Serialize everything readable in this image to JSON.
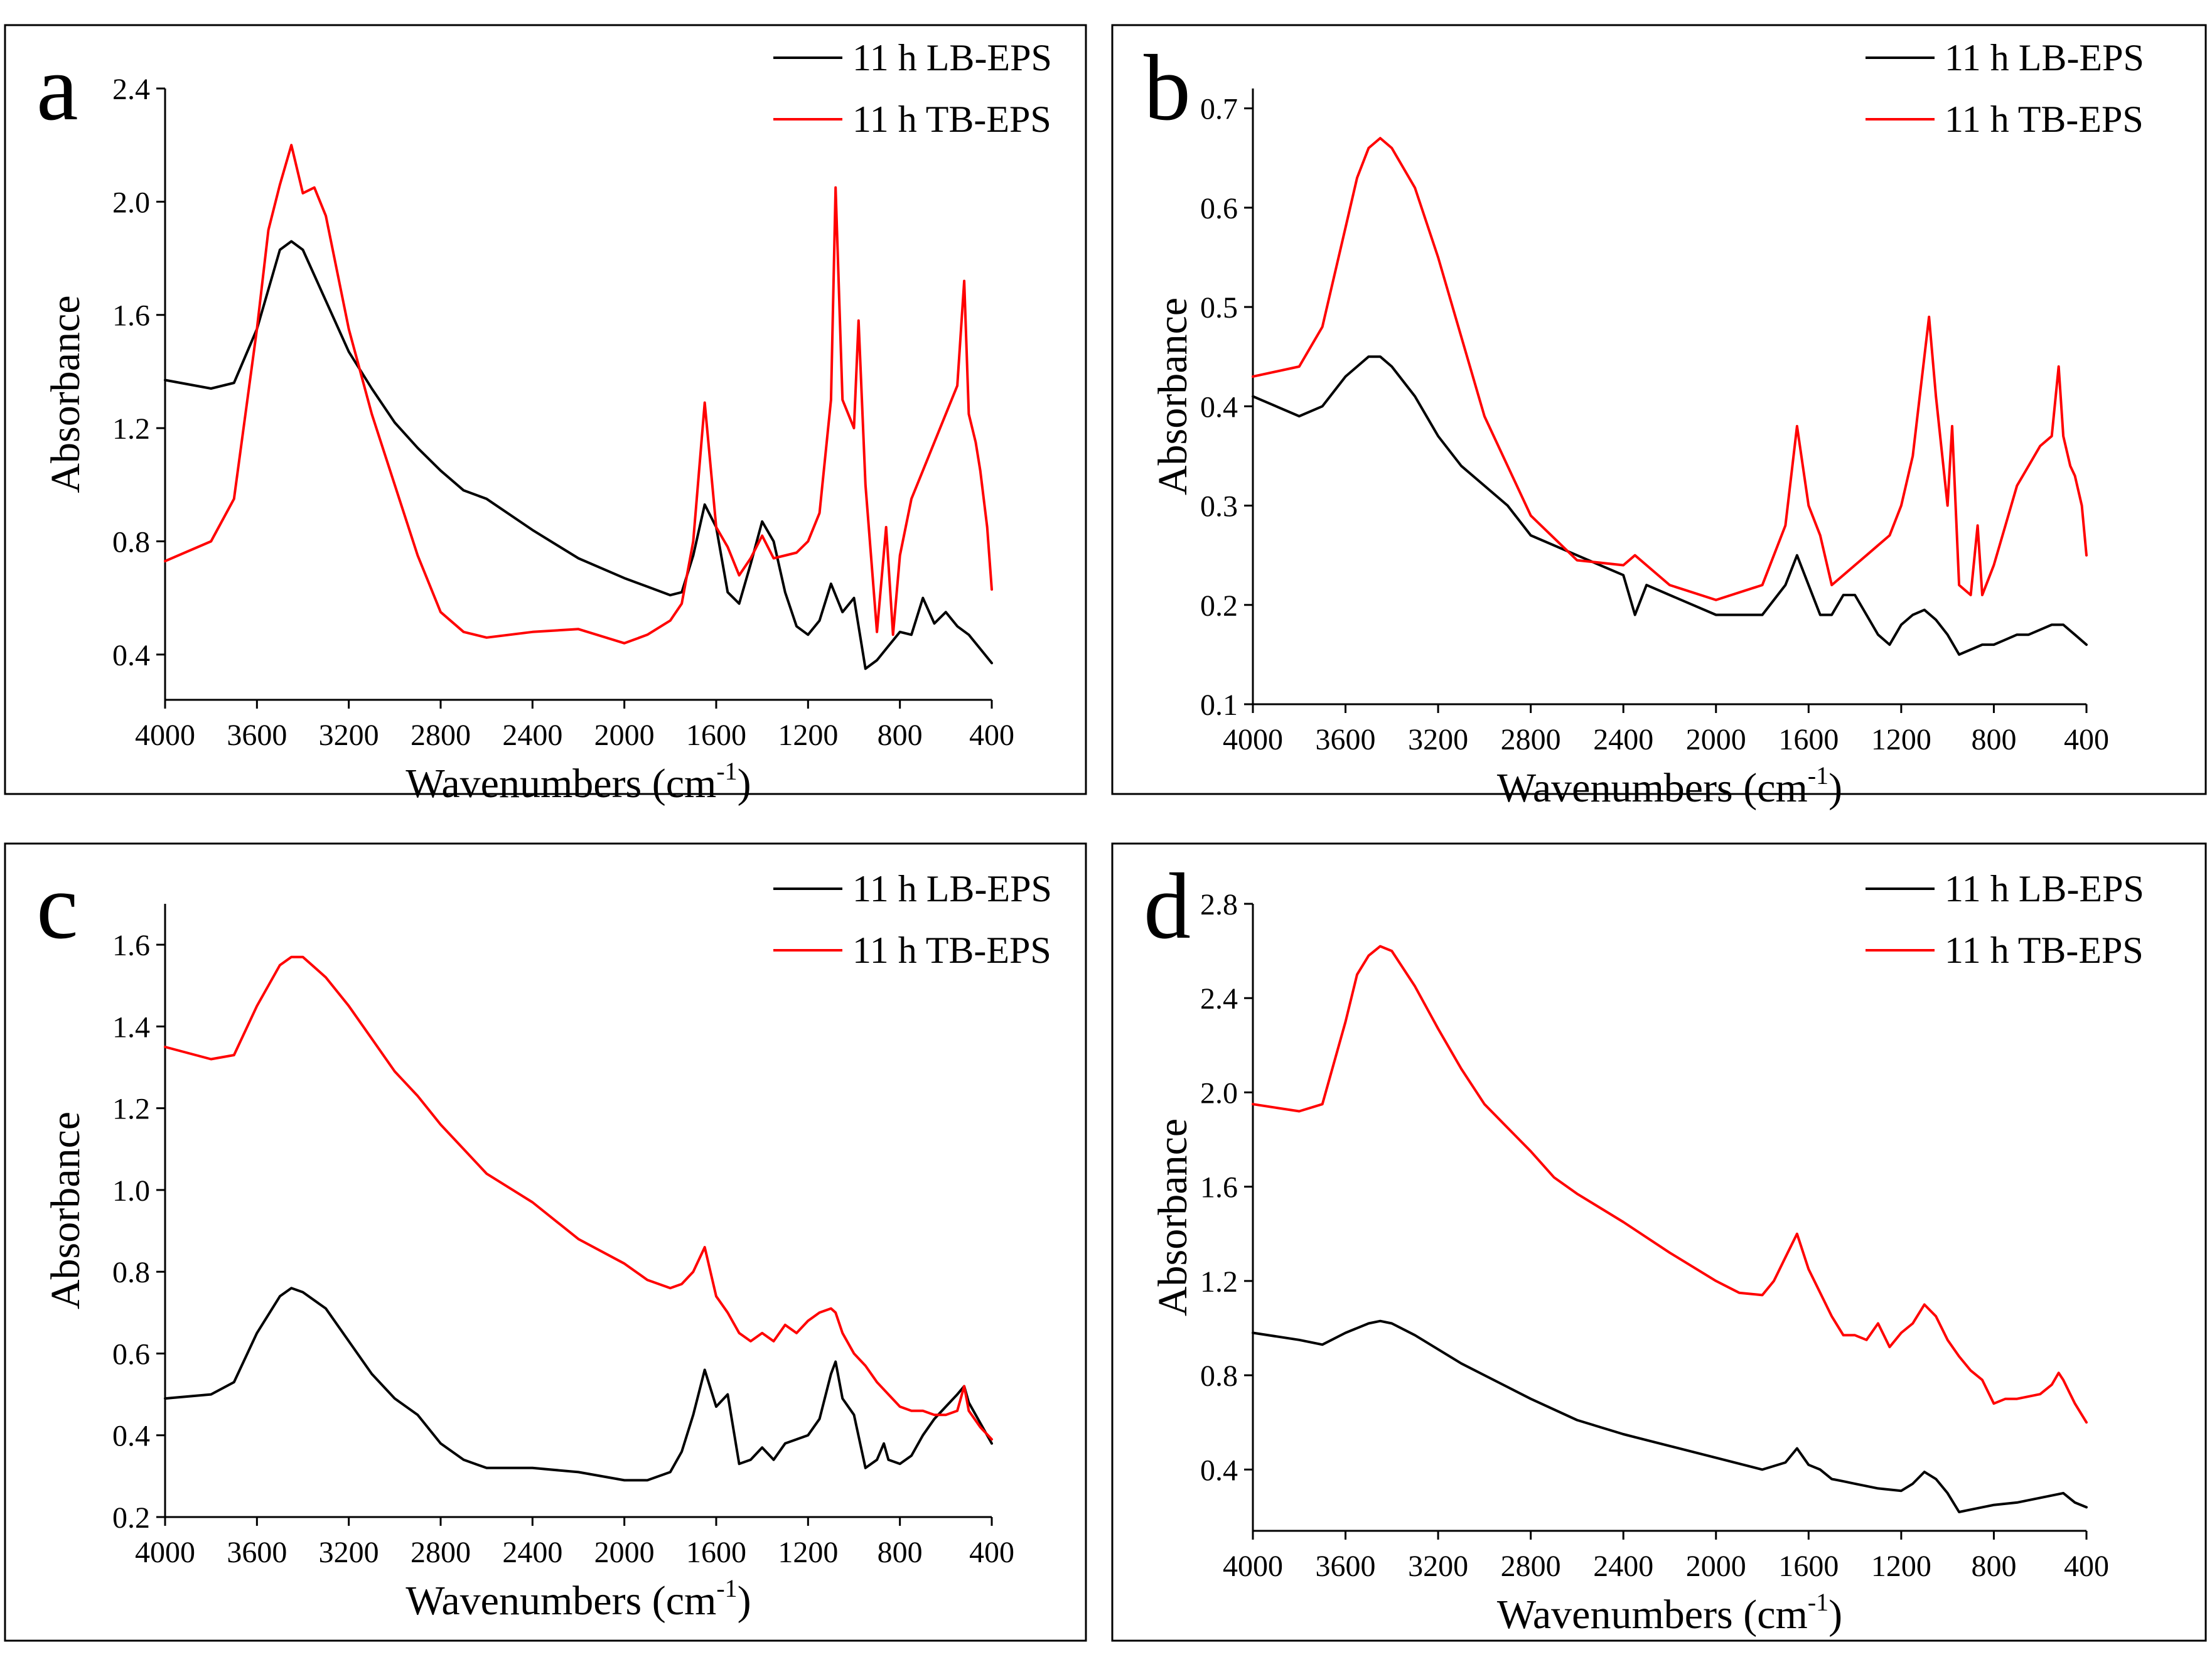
{
  "colors": {
    "lb": "#000000",
    "tb": "#ff0000"
  },
  "chart_data": [
    {
      "type": "line",
      "panel_label": "a",
      "xlabel": "Wavenumbers (cm",
      "xlabel_sup": "-1",
      "xlabel_close": ")",
      "ylabel": "Absorbance",
      "xlim": [
        4000,
        400
      ],
      "ylim": [
        0.24,
        2.4
      ],
      "xticks": [
        4000,
        3600,
        3200,
        2800,
        2400,
        2000,
        1600,
        1200,
        800,
        400
      ],
      "yticks": [
        "0.4",
        "0.8",
        "1.2",
        "1.6",
        "2.0",
        "2.4"
      ],
      "series": [
        {
          "name": "11 h LB-EPS",
          "color": "#000000",
          "x": [
            4000,
            3800,
            3700,
            3600,
            3500,
            3450,
            3400,
            3300,
            3200,
            3100,
            3000,
            2900,
            2800,
            2700,
            2600,
            2400,
            2200,
            2000,
            1900,
            1800,
            1750,
            1700,
            1650,
            1600,
            1550,
            1500,
            1450,
            1400,
            1350,
            1300,
            1250,
            1200,
            1150,
            1100,
            1050,
            1000,
            950,
            900,
            850,
            800,
            750,
            700,
            650,
            600,
            550,
            500,
            450,
            400
          ],
          "values": [
            1.37,
            1.34,
            1.36,
            1.55,
            1.83,
            1.86,
            1.83,
            1.65,
            1.47,
            1.34,
            1.22,
            1.13,
            1.05,
            0.98,
            0.95,
            0.84,
            0.74,
            0.67,
            0.64,
            0.61,
            0.62,
            0.75,
            0.93,
            0.85,
            0.62,
            0.58,
            0.72,
            0.87,
            0.8,
            0.62,
            0.5,
            0.47,
            0.52,
            0.65,
            0.55,
            0.6,
            0.35,
            0.38,
            0.43,
            0.48,
            0.47,
            0.6,
            0.51,
            0.55,
            0.5,
            0.47,
            0.42,
            0.37
          ]
        },
        {
          "name": "11 h TB-EPS",
          "color": "#ff0000",
          "x": [
            4000,
            3800,
            3700,
            3600,
            3550,
            3500,
            3450,
            3400,
            3350,
            3300,
            3200,
            3100,
            3000,
            2900,
            2800,
            2700,
            2600,
            2400,
            2200,
            2000,
            1900,
            1800,
            1750,
            1700,
            1650,
            1600,
            1550,
            1500,
            1450,
            1400,
            1350,
            1300,
            1250,
            1200,
            1150,
            1100,
            1080,
            1050,
            1000,
            980,
            950,
            900,
            860,
            830,
            800,
            750,
            700,
            650,
            600,
            550,
            520,
            500,
            470,
            450,
            420,
            400
          ],
          "values": [
            0.73,
            0.8,
            0.95,
            1.55,
            1.9,
            2.06,
            2.2,
            2.03,
            2.05,
            1.95,
            1.55,
            1.25,
            1.0,
            0.75,
            0.55,
            0.48,
            0.46,
            0.48,
            0.49,
            0.44,
            0.47,
            0.52,
            0.58,
            0.8,
            1.29,
            0.85,
            0.78,
            0.68,
            0.74,
            0.82,
            0.74,
            0.75,
            0.76,
            0.8,
            0.9,
            1.3,
            2.05,
            1.3,
            1.2,
            1.58,
            1.0,
            0.48,
            0.85,
            0.47,
            0.75,
            0.95,
            1.05,
            1.15,
            1.25,
            1.35,
            1.72,
            1.25,
            1.15,
            1.05,
            0.85,
            0.63
          ]
        }
      ]
    },
    {
      "type": "line",
      "panel_label": "b",
      "xlabel": "Wavenumbers (cm",
      "xlabel_sup": "-1",
      "xlabel_close": ")",
      "ylabel": "Absorbance",
      "xlim": [
        4000,
        400
      ],
      "ylim": [
        0.1,
        0.72
      ],
      "xticks": [
        4000,
        3600,
        3200,
        2800,
        2400,
        2000,
        1600,
        1200,
        800,
        400
      ],
      "yticks": [
        "0.1",
        "0.2",
        "0.3",
        "0.4",
        "0.5",
        "0.6",
        "0.7"
      ],
      "series": [
        {
          "name": "11 h LB-EPS",
          "color": "#000000",
          "x": [
            4000,
            3800,
            3700,
            3600,
            3500,
            3450,
            3400,
            3300,
            3200,
            3100,
            3000,
            2900,
            2800,
            2600,
            2400,
            2350,
            2300,
            2200,
            2000,
            1800,
            1700,
            1650,
            1600,
            1550,
            1500,
            1450,
            1400,
            1350,
            1300,
            1250,
            1200,
            1150,
            1100,
            1050,
            1000,
            950,
            900,
            850,
            800,
            750,
            700,
            650,
            600,
            550,
            500,
            450,
            400
          ],
          "values": [
            0.41,
            0.39,
            0.4,
            0.43,
            0.45,
            0.45,
            0.44,
            0.41,
            0.37,
            0.34,
            0.32,
            0.3,
            0.27,
            0.25,
            0.23,
            0.19,
            0.22,
            0.21,
            0.19,
            0.19,
            0.22,
            0.25,
            0.22,
            0.19,
            0.19,
            0.21,
            0.21,
            0.19,
            0.17,
            0.16,
            0.18,
            0.19,
            0.195,
            0.185,
            0.17,
            0.15,
            0.155,
            0.16,
            0.16,
            0.165,
            0.17,
            0.17,
            0.175,
            0.18,
            0.18,
            0.17,
            0.16
          ]
        },
        {
          "name": "11 h TB-EPS",
          "color": "#ff0000",
          "x": [
            4000,
            3800,
            3700,
            3600,
            3550,
            3500,
            3450,
            3400,
            3350,
            3300,
            3200,
            3100,
            3000,
            2900,
            2800,
            2600,
            2400,
            2350,
            2300,
            2200,
            2000,
            1800,
            1700,
            1650,
            1600,
            1550,
            1500,
            1450,
            1400,
            1350,
            1300,
            1250,
            1200,
            1150,
            1100,
            1080,
            1050,
            1000,
            980,
            950,
            900,
            870,
            850,
            800,
            750,
            700,
            650,
            600,
            550,
            520,
            500,
            470,
            450,
            420,
            400
          ],
          "values": [
            0.43,
            0.44,
            0.48,
            0.58,
            0.63,
            0.66,
            0.67,
            0.66,
            0.64,
            0.62,
            0.55,
            0.47,
            0.39,
            0.34,
            0.29,
            0.245,
            0.24,
            0.25,
            0.24,
            0.22,
            0.205,
            0.22,
            0.28,
            0.38,
            0.3,
            0.27,
            0.22,
            0.23,
            0.24,
            0.25,
            0.26,
            0.27,
            0.3,
            0.35,
            0.45,
            0.49,
            0.41,
            0.3,
            0.38,
            0.22,
            0.21,
            0.28,
            0.21,
            0.24,
            0.28,
            0.32,
            0.34,
            0.36,
            0.37,
            0.44,
            0.37,
            0.34,
            0.33,
            0.3,
            0.25
          ]
        }
      ]
    },
    {
      "type": "line",
      "panel_label": "c",
      "xlabel": "Wavenumbers (cm",
      "xlabel_sup": "-1",
      "xlabel_close": ")",
      "ylabel": "Absorbance",
      "xlim": [
        4000,
        400
      ],
      "ylim": [
        0.2,
        1.7
      ],
      "xticks": [
        4000,
        3600,
        3200,
        2800,
        2400,
        2000,
        1600,
        1200,
        800,
        400
      ],
      "yticks": [
        "0.2",
        "0.4",
        "0.6",
        "0.8",
        "1.0",
        "1.2",
        "1.4",
        "1.6"
      ],
      "series": [
        {
          "name": "11 h LB-EPS",
          "color": "#000000",
          "x": [
            4000,
            3800,
            3700,
            3600,
            3500,
            3450,
            3400,
            3300,
            3200,
            3100,
            3000,
            2900,
            2800,
            2700,
            2600,
            2400,
            2200,
            2000,
            1900,
            1800,
            1750,
            1700,
            1650,
            1600,
            1550,
            1500,
            1450,
            1400,
            1350,
            1300,
            1250,
            1200,
            1150,
            1100,
            1080,
            1050,
            1000,
            950,
            900,
            870,
            850,
            800,
            750,
            700,
            650,
            600,
            550,
            520,
            500,
            450,
            400
          ],
          "values": [
            0.49,
            0.5,
            0.53,
            0.65,
            0.74,
            0.76,
            0.75,
            0.71,
            0.63,
            0.55,
            0.49,
            0.45,
            0.38,
            0.34,
            0.32,
            0.32,
            0.31,
            0.29,
            0.29,
            0.31,
            0.36,
            0.45,
            0.56,
            0.47,
            0.5,
            0.33,
            0.34,
            0.37,
            0.34,
            0.38,
            0.39,
            0.4,
            0.44,
            0.55,
            0.58,
            0.49,
            0.45,
            0.32,
            0.34,
            0.38,
            0.34,
            0.33,
            0.35,
            0.4,
            0.44,
            0.47,
            0.5,
            0.52,
            0.48,
            0.43,
            0.38
          ]
        },
        {
          "name": "11 h TB-EPS",
          "color": "#ff0000",
          "x": [
            4000,
            3800,
            3700,
            3600,
            3500,
            3450,
            3400,
            3300,
            3200,
            3100,
            3000,
            2900,
            2800,
            2700,
            2600,
            2400,
            2200,
            2000,
            1900,
            1800,
            1750,
            1700,
            1650,
            1600,
            1550,
            1500,
            1450,
            1400,
            1350,
            1300,
            1250,
            1200,
            1150,
            1100,
            1080,
            1050,
            1000,
            950,
            900,
            850,
            800,
            750,
            700,
            650,
            600,
            550,
            520,
            500,
            450,
            400
          ],
          "values": [
            1.35,
            1.32,
            1.33,
            1.45,
            1.55,
            1.57,
            1.57,
            1.52,
            1.45,
            1.37,
            1.29,
            1.23,
            1.16,
            1.1,
            1.04,
            0.97,
            0.88,
            0.82,
            0.78,
            0.76,
            0.77,
            0.8,
            0.86,
            0.74,
            0.7,
            0.65,
            0.63,
            0.65,
            0.63,
            0.67,
            0.65,
            0.68,
            0.7,
            0.71,
            0.7,
            0.65,
            0.6,
            0.57,
            0.53,
            0.5,
            0.47,
            0.46,
            0.46,
            0.45,
            0.45,
            0.46,
            0.52,
            0.46,
            0.42,
            0.39
          ]
        }
      ]
    },
    {
      "type": "line",
      "panel_label": "d",
      "xlabel": "Wavenumbers (cm",
      "xlabel_sup": "-1",
      "xlabel_close": ")",
      "ylabel": "Absorbance",
      "xlim": [
        4000,
        400
      ],
      "ylim": [
        0.14,
        2.8
      ],
      "xticks": [
        4000,
        3600,
        3200,
        2800,
        2400,
        2000,
        1600,
        1200,
        800,
        400
      ],
      "yticks": [
        "0.4",
        "0.8",
        "1.2",
        "1.6",
        "2.0",
        "2.4",
        "2.8"
      ],
      "series": [
        {
          "name": "11 h LB-EPS",
          "color": "#000000",
          "x": [
            4000,
            3800,
            3700,
            3600,
            3500,
            3450,
            3400,
            3300,
            3200,
            3100,
            3000,
            2900,
            2800,
            2600,
            2400,
            2200,
            2000,
            1800,
            1700,
            1650,
            1600,
            1550,
            1500,
            1450,
            1400,
            1300,
            1200,
            1150,
            1100,
            1050,
            1000,
            950,
            900,
            850,
            800,
            700,
            600,
            550,
            500,
            450,
            400
          ],
          "values": [
            0.98,
            0.95,
            0.93,
            0.98,
            1.02,
            1.03,
            1.02,
            0.97,
            0.91,
            0.85,
            0.8,
            0.75,
            0.7,
            0.61,
            0.55,
            0.5,
            0.45,
            0.4,
            0.43,
            0.49,
            0.42,
            0.4,
            0.36,
            0.35,
            0.34,
            0.32,
            0.31,
            0.34,
            0.39,
            0.36,
            0.3,
            0.22,
            0.23,
            0.24,
            0.25,
            0.26,
            0.28,
            0.29,
            0.3,
            0.26,
            0.24
          ]
        },
        {
          "name": "11 h TB-EPS",
          "color": "#ff0000",
          "x": [
            4000,
            3800,
            3700,
            3600,
            3550,
            3500,
            3450,
            3400,
            3300,
            3200,
            3100,
            3000,
            2900,
            2800,
            2700,
            2600,
            2400,
            2200,
            2000,
            1900,
            1800,
            1750,
            1700,
            1650,
            1600,
            1550,
            1500,
            1450,
            1400,
            1350,
            1300,
            1250,
            1200,
            1150,
            1100,
            1050,
            1000,
            950,
            900,
            850,
            800,
            750,
            700,
            650,
            600,
            550,
            520,
            500,
            470,
            450,
            400
          ],
          "values": [
            1.95,
            1.92,
            1.95,
            2.3,
            2.5,
            2.58,
            2.62,
            2.6,
            2.45,
            2.27,
            2.1,
            1.95,
            1.85,
            1.75,
            1.64,
            1.57,
            1.45,
            1.32,
            1.2,
            1.15,
            1.14,
            1.2,
            1.3,
            1.4,
            1.25,
            1.15,
            1.05,
            0.97,
            0.97,
            0.95,
            1.02,
            0.92,
            0.98,
            1.02,
            1.1,
            1.05,
            0.95,
            0.88,
            0.82,
            0.78,
            0.68,
            0.7,
            0.7,
            0.71,
            0.72,
            0.76,
            0.81,
            0.78,
            0.72,
            0.68,
            0.6
          ]
        }
      ]
    }
  ]
}
